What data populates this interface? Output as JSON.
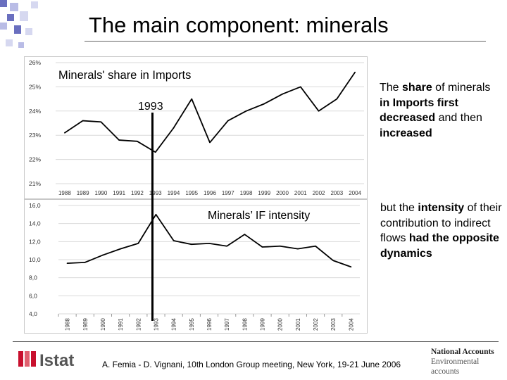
{
  "slide": {
    "title": "The main component: minerals",
    "label_1993": "1993",
    "label_if": "Minerals’ IF intensity"
  },
  "annotations": {
    "first": [
      {
        "text": "The ",
        "bold": false
      },
      {
        "text": "share",
        "bold": true
      },
      {
        "text": " of minerals ",
        "bold": false
      },
      {
        "text": "in Imports first decreased",
        "bold": true
      },
      {
        "text": " and then ",
        "bold": false
      },
      {
        "text": "increased",
        "bold": true
      }
    ],
    "second": [
      {
        "text": "but the ",
        "bold": false
      },
      {
        "text": "intensity",
        "bold": true
      },
      {
        "text": " of their contribution to indirect flows ",
        "bold": false
      },
      {
        "text": "had the opposite dynamics",
        "bold": true
      }
    ]
  },
  "footer": {
    "citation": "A. Femia - D. Vignani, 10th London Group meeting, New York, 19-21 June 2006",
    "logo_text": "Istat",
    "na_title": "National Accounts",
    "na_sub1": "Environmental",
    "na_sub2": "accounts"
  },
  "colors": {
    "logo_red": "#c8102e",
    "deco_blue": "#6a6fbf"
  },
  "chart_data": [
    {
      "type": "line",
      "title": "Minerals' share in Imports",
      "categories": [
        "1988",
        "1989",
        "1990",
        "1991",
        "1992",
        "1993",
        "1994",
        "1995",
        "1996",
        "1997",
        "1998",
        "1999",
        "2000",
        "2001",
        "2002",
        "2003",
        "2004"
      ],
      "values": [
        23.1,
        23.6,
        23.55,
        22.8,
        22.75,
        22.3,
        23.3,
        24.5,
        22.7,
        23.6,
        24.0,
        24.3,
        24.7,
        25.0,
        24.0,
        24.5,
        25.6
      ],
      "ylim": [
        21,
        26
      ],
      "yticks": [
        "21%",
        "22%",
        "23%",
        "24%",
        "25%",
        "26%"
      ],
      "grid": true,
      "xlabel": "",
      "ylabel": ""
    },
    {
      "type": "line",
      "title": "",
      "categories": [
        "1988",
        "1989",
        "1990",
        "1991",
        "1992",
        "1993",
        "1994",
        "1995",
        "1996",
        "1997",
        "1998",
        "1999",
        "2000",
        "2001",
        "2002",
        "2003",
        "2004"
      ],
      "values": [
        9.6,
        9.7,
        10.5,
        11.2,
        11.8,
        15.0,
        12.1,
        11.7,
        11.8,
        11.5,
        12.8,
        11.4,
        11.5,
        11.2,
        11.5,
        9.9,
        9.2
      ],
      "ylim": [
        4,
        16
      ],
      "yticks": [
        "4,0",
        "6,0",
        "8,0",
        "10,0",
        "12,0",
        "14,0",
        "16,0"
      ],
      "grid": true,
      "xlabel": "",
      "ylabel": ""
    }
  ]
}
